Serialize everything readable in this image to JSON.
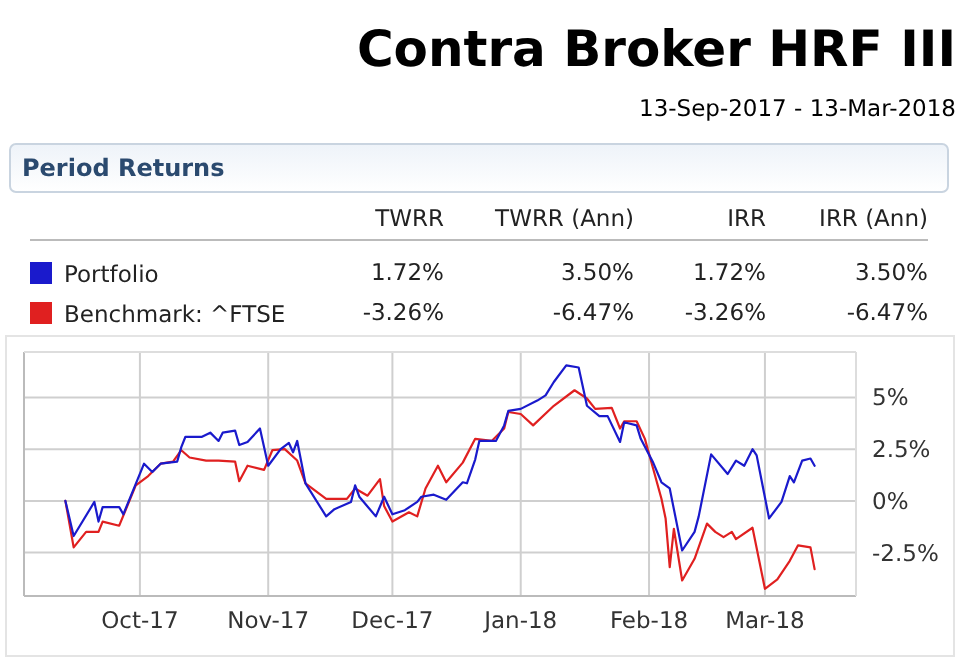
{
  "chart_data": [
    {
      "type": "other",
      "title": "Contra Broker HRF III",
      "subtitle": "13-Sep-2017 - 13-Mar-2018",
      "annotations": [
        "Period Returns",
        "TWRR",
        "TWRR (Ann)",
        "IRR",
        "IRR (Ann)",
        "1.72%",
        "3.50%",
        "1.72%",
        "3.50%",
        "-3.26%",
        "-6.47%",
        "-3.26%",
        "-6.47%"
      ]
    },
    {
      "type": "line",
      "legend": "top",
      "grid": true,
      "xlim": [
        "2017-09-03",
        "2018-03-23"
      ],
      "ylim": [
        -4.6,
        7.2
      ],
      "xticks": [
        {
          "value": "2017-10-01",
          "label": "Oct-17"
        },
        {
          "value": "2017-11-01",
          "label": "Nov-17"
        },
        {
          "value": "2017-12-01",
          "label": "Dec-17"
        },
        {
          "value": "2018-01-01",
          "label": "Jan-18"
        },
        {
          "value": "2018-02-01",
          "label": "Feb-18"
        },
        {
          "value": "2018-03-01",
          "label": "Mar-18"
        }
      ],
      "yticks": [
        {
          "value": 5,
          "label": "5%"
        },
        {
          "value": 2.5,
          "label": "2.5%"
        },
        {
          "value": 0,
          "label": "0%"
        },
        {
          "value": -2.5,
          "label": "-2.5%"
        }
      ],
      "series": [
        {
          "name": "Portfolio",
          "color": "#1a1acc",
          "x": [
            "2017-09-13",
            "2017-09-15",
            "2017-09-20",
            "2017-09-21",
            "2017-09-22",
            "2017-09-26",
            "2017-09-27",
            "2017-10-02",
            "2017-10-04",
            "2017-10-06",
            "2017-10-10",
            "2017-10-11",
            "2017-10-12",
            "2017-10-16",
            "2017-10-18",
            "2017-10-20",
            "2017-10-21",
            "2017-10-24",
            "2017-10-25",
            "2017-10-27",
            "2017-10-30",
            "2017-11-01",
            "2017-11-04",
            "2017-11-06",
            "2017-11-07",
            "2017-11-08",
            "2017-11-10",
            "2017-11-15",
            "2017-11-17",
            "2017-11-21",
            "2017-11-22",
            "2017-11-23",
            "2017-11-27",
            "2017-11-29",
            "2017-12-01",
            "2017-12-04",
            "2017-12-07",
            "2017-12-08",
            "2017-12-11",
            "2017-12-14",
            "2017-12-18",
            "2017-12-19",
            "2017-12-21",
            "2017-12-22",
            "2017-12-26",
            "2017-12-28",
            "2017-12-29",
            "2018-01-01",
            "2018-01-05",
            "2018-01-07",
            "2018-01-09",
            "2018-01-12",
            "2018-01-15",
            "2018-01-17",
            "2018-01-20",
            "2018-01-22",
            "2018-01-25",
            "2018-01-26",
            "2018-01-29",
            "2018-01-30",
            "2018-02-02",
            "2018-02-04",
            "2018-02-06",
            "2018-02-09",
            "2018-02-12",
            "2018-02-13",
            "2018-02-16",
            "2018-02-20",
            "2018-02-22",
            "2018-02-24",
            "2018-02-26",
            "2018-02-27",
            "2018-03-02",
            "2018-03-05",
            "2018-03-07",
            "2018-03-08",
            "2018-03-10",
            "2018-03-12",
            "2018-03-13"
          ],
          "values": [
            0,
            -1.7,
            -0.05,
            -1.0,
            -0.3,
            -0.3,
            -0.65,
            1.8,
            1.4,
            1.8,
            1.9,
            2.6,
            3.1,
            3.1,
            3.3,
            2.9,
            3.3,
            3.4,
            2.7,
            2.85,
            3.5,
            1.7,
            2.5,
            2.8,
            2.35,
            2.9,
            0.85,
            -0.75,
            -0.4,
            -0.05,
            0.75,
            0.2,
            -0.75,
            0.2,
            -0.65,
            -0.45,
            -0.05,
            0.2,
            0.3,
            0.05,
            0.9,
            0.85,
            2.0,
            2.9,
            2.9,
            3.65,
            4.35,
            4.45,
            4.85,
            5.1,
            5.75,
            6.55,
            6.45,
            4.6,
            4.1,
            4.1,
            2.85,
            3.8,
            3.65,
            3.0,
            1.85,
            0.9,
            0.6,
            -2.4,
            -1.5,
            -0.75,
            2.25,
            1.3,
            1.95,
            1.7,
            2.5,
            2.2,
            -0.85,
            -0.05,
            1.2,
            0.9,
            1.95,
            2.05,
            1.7
          ]
        },
        {
          "name": "Benchmark: ^FTSE",
          "color": "#e02020",
          "x": [
            "2017-09-13",
            "2017-09-15",
            "2017-09-18",
            "2017-09-21",
            "2017-09-22",
            "2017-09-26",
            "2017-09-30",
            "2017-10-03",
            "2017-10-06",
            "2017-10-09",
            "2017-10-11",
            "2017-10-13",
            "2017-10-17",
            "2017-10-20",
            "2017-10-24",
            "2017-10-25",
            "2017-10-27",
            "2017-10-31",
            "2017-11-02",
            "2017-11-05",
            "2017-11-08",
            "2017-11-10",
            "2017-11-15",
            "2017-11-17",
            "2017-11-20",
            "2017-11-22",
            "2017-11-25",
            "2017-11-28",
            "2017-11-29",
            "2017-12-01",
            "2017-12-05",
            "2017-12-07",
            "2017-12-09",
            "2017-12-12",
            "2017-12-14",
            "2017-12-18",
            "2017-12-21",
            "2017-12-25",
            "2017-12-28",
            "2017-12-29",
            "2018-01-01",
            "2018-01-04",
            "2018-01-09",
            "2018-01-14",
            "2018-01-17",
            "2018-01-19",
            "2018-01-23",
            "2018-01-25",
            "2018-01-26",
            "2018-01-29",
            "2018-01-31",
            "2018-02-02",
            "2018-02-04",
            "2018-02-05",
            "2018-02-06",
            "2018-02-07",
            "2018-02-09",
            "2018-02-12",
            "2018-02-15",
            "2018-02-17",
            "2018-02-19",
            "2018-02-21",
            "2018-02-22",
            "2018-02-26",
            "2018-03-01",
            "2018-03-04",
            "2018-03-07",
            "2018-03-09",
            "2018-03-12",
            "2018-03-13"
          ],
          "values": [
            0,
            -2.25,
            -1.5,
            -1.5,
            -1.0,
            -1.2,
            0.75,
            1.2,
            1.8,
            1.9,
            2.45,
            2.1,
            1.95,
            1.95,
            1.9,
            0.95,
            1.7,
            1.5,
            2.45,
            2.5,
            1.95,
            0.85,
            0.1,
            0.1,
            0.1,
            0.6,
            0.25,
            1.05,
            -0.25,
            -1.0,
            -0.55,
            -0.75,
            0.6,
            1.7,
            0.9,
            1.85,
            3.0,
            2.9,
            3.5,
            4.3,
            4.2,
            3.65,
            4.6,
            5.35,
            4.95,
            4.45,
            4.5,
            3.5,
            3.85,
            3.85,
            3.0,
            1.55,
            0.1,
            -0.85,
            -3.2,
            -1.35,
            -3.85,
            -2.8,
            -1.1,
            -1.5,
            -1.75,
            -1.5,
            -1.85,
            -1.3,
            -4.25,
            -3.8,
            -2.9,
            -2.15,
            -2.25,
            -3.3
          ]
        }
      ]
    }
  ]
}
